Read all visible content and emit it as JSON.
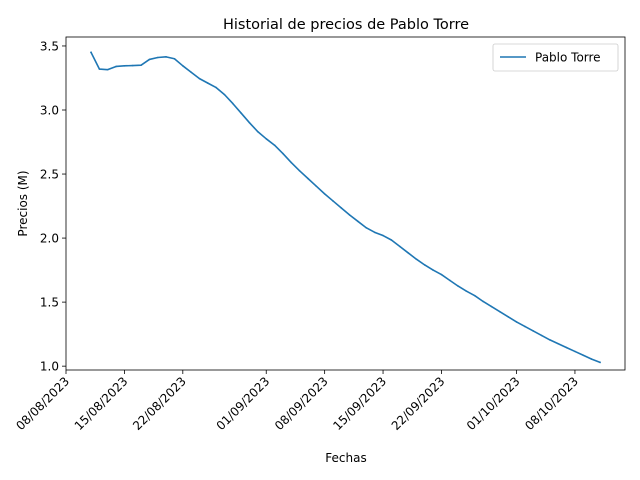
{
  "chart_data": {
    "type": "line",
    "title": "Historial de precios de Pablo Torre",
    "xlabel": "Fechas",
    "ylabel": "Precios (M)",
    "x_axis_type": "date",
    "xlim": [
      "2023-08-08",
      "2023-10-14"
    ],
    "ylim": [
      0.97,
      3.57
    ],
    "x_ticks": [
      {
        "date": "2023-08-08",
        "label": "08/08/2023"
      },
      {
        "date": "2023-08-15",
        "label": "15/08/2023"
      },
      {
        "date": "2023-08-22",
        "label": "22/08/2023"
      },
      {
        "date": "2023-09-01",
        "label": "01/09/2023"
      },
      {
        "date": "2023-09-08",
        "label": "08/09/2023"
      },
      {
        "date": "2023-09-15",
        "label": "15/09/2023"
      },
      {
        "date": "2023-09-22",
        "label": "22/09/2023"
      },
      {
        "date": "2023-10-01",
        "label": "01/10/2023"
      },
      {
        "date": "2023-10-08",
        "label": "08/10/2023"
      }
    ],
    "y_ticks": [
      {
        "value": 1.0,
        "label": "1.0"
      },
      {
        "value": 1.5,
        "label": "1.5"
      },
      {
        "value": 2.0,
        "label": "2.0"
      },
      {
        "value": 2.5,
        "label": "2.5"
      },
      {
        "value": 3.0,
        "label": "3.0"
      },
      {
        "value": 3.5,
        "label": "3.5"
      }
    ],
    "grid": false,
    "legend_position": "top-right",
    "series": [
      {
        "name": "Pablo Torre",
        "color": "#1f77b4",
        "x": [
          "2023-08-11",
          "2023-08-12",
          "2023-08-13",
          "2023-08-14",
          "2023-08-15",
          "2023-08-16",
          "2023-08-17",
          "2023-08-18",
          "2023-08-19",
          "2023-08-20",
          "2023-08-21",
          "2023-08-22",
          "2023-08-23",
          "2023-08-24",
          "2023-08-25",
          "2023-08-26",
          "2023-08-27",
          "2023-08-28",
          "2023-08-29",
          "2023-08-30",
          "2023-08-31",
          "2023-09-01",
          "2023-09-02",
          "2023-09-03",
          "2023-09-04",
          "2023-09-05",
          "2023-09-06",
          "2023-09-07",
          "2023-09-08",
          "2023-09-09",
          "2023-09-10",
          "2023-09-11",
          "2023-09-12",
          "2023-09-13",
          "2023-09-14",
          "2023-09-15",
          "2023-09-16",
          "2023-09-17",
          "2023-09-18",
          "2023-09-19",
          "2023-09-20",
          "2023-09-21",
          "2023-09-22",
          "2023-09-23",
          "2023-09-24",
          "2023-09-25",
          "2023-09-26",
          "2023-09-27",
          "2023-09-28",
          "2023-09-29",
          "2023-09-30",
          "2023-10-01",
          "2023-10-02",
          "2023-10-03",
          "2023-10-04",
          "2023-10-05",
          "2023-10-06",
          "2023-10-07",
          "2023-10-08",
          "2023-10-09",
          "2023-10-10",
          "2023-10-11"
        ],
        "values": [
          3.45,
          3.32,
          3.315,
          3.34,
          3.345,
          3.347,
          3.35,
          3.395,
          3.41,
          3.415,
          3.4,
          3.345,
          3.295,
          3.245,
          3.21,
          3.175,
          3.12,
          3.05,
          2.975,
          2.9,
          2.83,
          2.775,
          2.725,
          2.66,
          2.59,
          2.525,
          2.465,
          2.405,
          2.345,
          2.29,
          2.235,
          2.18,
          2.13,
          2.08,
          2.045,
          2.02,
          1.985,
          1.935,
          1.885,
          1.835,
          1.79,
          1.75,
          1.715,
          1.67,
          1.625,
          1.585,
          1.55,
          1.505,
          1.465,
          1.425,
          1.385,
          1.345,
          1.31,
          1.275,
          1.24,
          1.205,
          1.175,
          1.145,
          1.115,
          1.085,
          1.055,
          1.03
        ]
      }
    ]
  }
}
